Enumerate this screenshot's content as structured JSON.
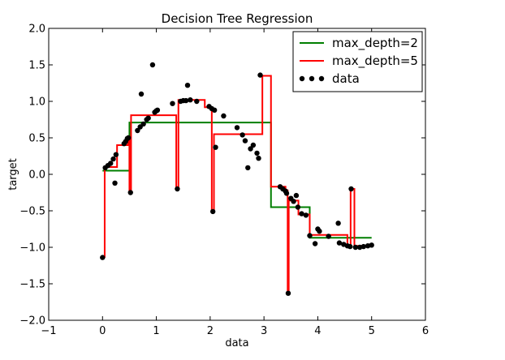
{
  "chart_data": {
    "type": "line",
    "title": "Decision Tree Regression",
    "xlabel": "data",
    "ylabel": "target",
    "xlim": [
      -1,
      6
    ],
    "ylim": [
      -2.0,
      2.0
    ],
    "xticks": [
      -1,
      0,
      1,
      2,
      3,
      4,
      5,
      6
    ],
    "xtick_labels": [
      "−1",
      "0",
      "1",
      "2",
      "3",
      "4",
      "5",
      "6"
    ],
    "yticks": [
      -2.0,
      -1.5,
      -1.0,
      -0.5,
      0.0,
      0.5,
      1.0,
      1.5,
      2.0
    ],
    "ytick_labels": [
      "−2.0",
      "−1.5",
      "−1.0",
      "−0.5",
      "0.0",
      "0.5",
      "1.0",
      "1.5",
      "2.0"
    ],
    "grid": false,
    "legend_position": "top-right",
    "series": [
      {
        "name": "max_depth=2",
        "kind": "step",
        "color": "#007f00",
        "x": [
          0.0,
          0.5,
          0.5,
          3.13,
          3.13,
          3.85,
          3.85,
          5.0
        ],
        "y": [
          0.05,
          0.05,
          0.71,
          0.71,
          -0.45,
          -0.45,
          -0.87,
          -0.87
        ]
      },
      {
        "name": "max_depth=5",
        "kind": "step",
        "color": "#ff0000",
        "x": [
          0.0,
          0.04,
          0.04,
          0.27,
          0.27,
          0.47,
          0.47,
          0.5,
          0.5,
          0.53,
          0.53,
          1.37,
          1.37,
          1.41,
          1.41,
          1.9,
          1.9,
          2.03,
          2.03,
          2.07,
          2.07,
          2.97,
          2.97,
          3.13,
          3.13,
          3.4,
          3.4,
          3.44,
          3.44,
          3.46,
          3.46,
          3.64,
          3.64,
          3.85,
          3.85,
          4.55,
          4.55,
          4.61,
          4.61,
          4.68,
          4.68,
          5.0
        ],
        "y": [
          -1.13,
          -1.13,
          0.1,
          0.1,
          0.4,
          0.4,
          0.5,
          0.5,
          -0.25,
          -0.25,
          0.81,
          0.81,
          -0.2,
          -0.2,
          1.02,
          1.02,
          0.92,
          0.92,
          -0.5,
          -0.5,
          0.55,
          0.55,
          1.35,
          1.35,
          -0.17,
          -0.17,
          -0.22,
          -0.22,
          -1.63,
          -1.63,
          -0.36,
          -0.36,
          -0.55,
          -0.55,
          -0.83,
          -0.83,
          -0.97,
          -0.97,
          -0.2,
          -0.2,
          -0.98,
          -0.98
        ]
      },
      {
        "name": "data",
        "kind": "scatter",
        "color": "#000000",
        "points": [
          [
            0.0,
            -1.14
          ],
          [
            0.05,
            0.09
          ],
          [
            0.1,
            0.12
          ],
          [
            0.15,
            0.15
          ],
          [
            0.2,
            0.21
          ],
          [
            0.23,
            -0.12
          ],
          [
            0.25,
            0.27
          ],
          [
            0.4,
            0.42
          ],
          [
            0.43,
            0.45
          ],
          [
            0.46,
            0.49
          ],
          [
            0.48,
            0.5
          ],
          [
            0.52,
            -0.25
          ],
          [
            0.65,
            0.6
          ],
          [
            0.7,
            0.65
          ],
          [
            0.72,
            1.1
          ],
          [
            0.76,
            0.69
          ],
          [
            0.82,
            0.75
          ],
          [
            0.85,
            0.77
          ],
          [
            0.93,
            1.5
          ],
          [
            0.97,
            0.85
          ],
          [
            1.0,
            0.87
          ],
          [
            1.02,
            0.88
          ],
          [
            1.3,
            0.97
          ],
          [
            1.39,
            -0.2
          ],
          [
            1.45,
            1.0
          ],
          [
            1.5,
            1.01
          ],
          [
            1.55,
            1.01
          ],
          [
            1.58,
            1.22
          ],
          [
            1.63,
            1.02
          ],
          [
            1.75,
            1.0
          ],
          [
            1.98,
            0.93
          ],
          [
            2.03,
            0.9
          ],
          [
            2.05,
            -0.51
          ],
          [
            2.08,
            0.88
          ],
          [
            2.1,
            0.37
          ],
          [
            2.25,
            0.8
          ],
          [
            2.5,
            0.64
          ],
          [
            2.6,
            0.54
          ],
          [
            2.65,
            0.46
          ],
          [
            2.7,
            0.09
          ],
          [
            2.75,
            0.35
          ],
          [
            2.8,
            0.4
          ],
          [
            2.87,
            0.29
          ],
          [
            2.9,
            0.22
          ],
          [
            2.93,
            1.36
          ],
          [
            3.3,
            -0.17
          ],
          [
            3.35,
            -0.2
          ],
          [
            3.4,
            -0.23
          ],
          [
            3.42,
            -0.26
          ],
          [
            3.45,
            -1.63
          ],
          [
            3.5,
            -0.33
          ],
          [
            3.55,
            -0.37
          ],
          [
            3.6,
            -0.29
          ],
          [
            3.63,
            -0.45
          ],
          [
            3.7,
            -0.54
          ],
          [
            3.78,
            -0.56
          ],
          [
            3.85,
            -0.84
          ],
          [
            3.95,
            -0.95
          ],
          [
            4.0,
            -0.75
          ],
          [
            4.03,
            -0.78
          ],
          [
            4.2,
            -0.85
          ],
          [
            4.38,
            -0.67
          ],
          [
            4.4,
            -0.94
          ],
          [
            4.48,
            -0.96
          ],
          [
            4.55,
            -0.98
          ],
          [
            4.6,
            -0.99
          ],
          [
            4.62,
            -0.2
          ],
          [
            4.7,
            -1.0
          ],
          [
            4.78,
            -1.0
          ],
          [
            4.85,
            -0.99
          ],
          [
            4.93,
            -0.98
          ],
          [
            5.0,
            -0.97
          ]
        ]
      }
    ]
  }
}
